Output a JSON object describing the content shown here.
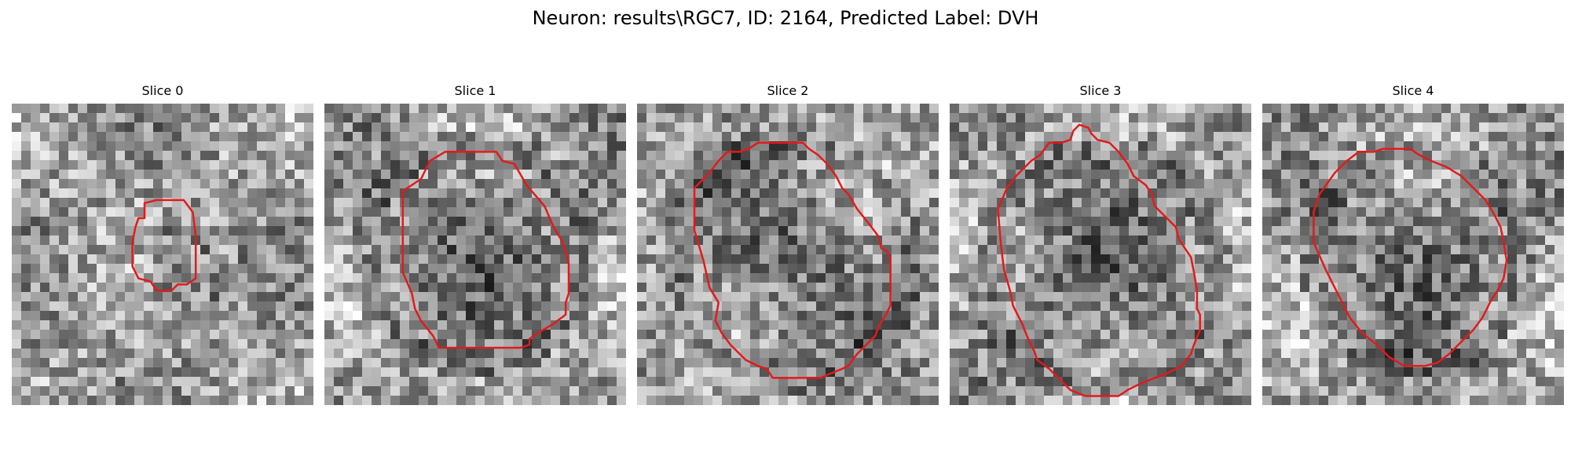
{
  "figure": {
    "title": "Neuron: results\\RGC7, ID: 2164, Predicted Label: DVH"
  },
  "colors": {
    "contour": "#e31a1c",
    "background": "#ffffff"
  },
  "panels": [
    {
      "title": "Slice 0",
      "seed": 11,
      "dark_centre": [
        0.52,
        0.57
      ],
      "dark_radius": 0.16,
      "contour": [
        [
          0.44,
          0.33
        ],
        [
          0.48,
          0.32
        ],
        [
          0.57,
          0.32
        ],
        [
          0.6,
          0.36
        ],
        [
          0.61,
          0.44
        ],
        [
          0.61,
          0.57
        ],
        [
          0.61,
          0.58
        ],
        [
          0.58,
          0.6
        ],
        [
          0.55,
          0.6
        ],
        [
          0.53,
          0.62
        ],
        [
          0.52,
          0.62
        ],
        [
          0.48,
          0.62
        ],
        [
          0.46,
          0.59
        ],
        [
          0.42,
          0.58
        ],
        [
          0.4,
          0.54
        ],
        [
          0.4,
          0.46
        ],
        [
          0.41,
          0.41
        ],
        [
          0.42,
          0.38
        ],
        [
          0.44,
          0.38
        ]
      ]
    },
    {
      "title": "Slice 1",
      "seed": 23,
      "dark_centre": [
        0.5,
        0.5
      ],
      "dark_radius": 0.36,
      "contour": [
        [
          0.32,
          0.25
        ],
        [
          0.35,
          0.19
        ],
        [
          0.4,
          0.16
        ],
        [
          0.57,
          0.16
        ],
        [
          0.59,
          0.19
        ],
        [
          0.63,
          0.2
        ],
        [
          0.67,
          0.27
        ],
        [
          0.73,
          0.34
        ],
        [
          0.76,
          0.41
        ],
        [
          0.79,
          0.46
        ],
        [
          0.81,
          0.53
        ],
        [
          0.81,
          0.63
        ],
        [
          0.8,
          0.66
        ],
        [
          0.8,
          0.7
        ],
        [
          0.76,
          0.73
        ],
        [
          0.71,
          0.76
        ],
        [
          0.68,
          0.78
        ],
        [
          0.68,
          0.8
        ],
        [
          0.65,
          0.81
        ],
        [
          0.38,
          0.81
        ],
        [
          0.36,
          0.77
        ],
        [
          0.32,
          0.72
        ],
        [
          0.3,
          0.68
        ],
        [
          0.29,
          0.63
        ],
        [
          0.26,
          0.56
        ],
        [
          0.26,
          0.29
        ]
      ]
    },
    {
      "title": "Slice 2",
      "seed": 37,
      "dark_centre": [
        0.52,
        0.52
      ],
      "dark_radius": 0.38,
      "contour": [
        [
          0.24,
          0.23
        ],
        [
          0.27,
          0.19
        ],
        [
          0.3,
          0.16
        ],
        [
          0.34,
          0.16
        ],
        [
          0.37,
          0.15
        ],
        [
          0.4,
          0.13
        ],
        [
          0.55,
          0.13
        ],
        [
          0.57,
          0.15
        ],
        [
          0.6,
          0.17
        ],
        [
          0.63,
          0.2
        ],
        [
          0.66,
          0.24
        ],
        [
          0.68,
          0.28
        ],
        [
          0.7,
          0.3
        ],
        [
          0.73,
          0.35
        ],
        [
          0.77,
          0.4
        ],
        [
          0.8,
          0.44
        ],
        [
          0.81,
          0.48
        ],
        [
          0.83,
          0.49
        ],
        [
          0.84,
          0.52
        ],
        [
          0.84,
          0.67
        ],
        [
          0.82,
          0.71
        ],
        [
          0.8,
          0.74
        ],
        [
          0.79,
          0.77
        ],
        [
          0.76,
          0.8
        ],
        [
          0.73,
          0.83
        ],
        [
          0.7,
          0.87
        ],
        [
          0.68,
          0.88
        ],
        [
          0.63,
          0.9
        ],
        [
          0.61,
          0.91
        ],
        [
          0.45,
          0.91
        ],
        [
          0.43,
          0.88
        ],
        [
          0.4,
          0.87
        ],
        [
          0.36,
          0.85
        ],
        [
          0.31,
          0.8
        ],
        [
          0.28,
          0.76
        ],
        [
          0.26,
          0.72
        ],
        [
          0.27,
          0.66
        ],
        [
          0.24,
          0.61
        ],
        [
          0.22,
          0.52
        ],
        [
          0.19,
          0.42
        ],
        [
          0.19,
          0.28
        ],
        [
          0.21,
          0.26
        ]
      ]
    },
    {
      "title": "Slice 3",
      "seed": 51,
      "dark_centre": [
        0.5,
        0.55
      ],
      "dark_radius": 0.38,
      "contour": [
        [
          0.19,
          0.28
        ],
        [
          0.22,
          0.24
        ],
        [
          0.27,
          0.19
        ],
        [
          0.3,
          0.17
        ],
        [
          0.33,
          0.13
        ],
        [
          0.37,
          0.13
        ],
        [
          0.4,
          0.12
        ],
        [
          0.41,
          0.09
        ],
        [
          0.43,
          0.07
        ],
        [
          0.46,
          0.08
        ],
        [
          0.47,
          0.1
        ],
        [
          0.49,
          0.12
        ],
        [
          0.53,
          0.13
        ],
        [
          0.56,
          0.16
        ],
        [
          0.59,
          0.2
        ],
        [
          0.61,
          0.24
        ],
        [
          0.65,
          0.27
        ],
        [
          0.67,
          0.3
        ],
        [
          0.68,
          0.34
        ],
        [
          0.72,
          0.38
        ],
        [
          0.75,
          0.41
        ],
        [
          0.76,
          0.45
        ],
        [
          0.78,
          0.48
        ],
        [
          0.8,
          0.51
        ],
        [
          0.81,
          0.56
        ],
        [
          0.82,
          0.62
        ],
        [
          0.82,
          0.68
        ],
        [
          0.83,
          0.7
        ],
        [
          0.83,
          0.75
        ],
        [
          0.81,
          0.8
        ],
        [
          0.8,
          0.83
        ],
        [
          0.77,
          0.87
        ],
        [
          0.71,
          0.9
        ],
        [
          0.68,
          0.91
        ],
        [
          0.63,
          0.93
        ],
        [
          0.59,
          0.95
        ],
        [
          0.56,
          0.97
        ],
        [
          0.45,
          0.97
        ],
        [
          0.4,
          0.95
        ],
        [
          0.37,
          0.92
        ],
        [
          0.33,
          0.88
        ],
        [
          0.29,
          0.85
        ],
        [
          0.28,
          0.82
        ],
        [
          0.26,
          0.78
        ],
        [
          0.24,
          0.73
        ],
        [
          0.21,
          0.67
        ],
        [
          0.2,
          0.62
        ],
        [
          0.18,
          0.55
        ],
        [
          0.17,
          0.47
        ],
        [
          0.16,
          0.35
        ]
      ]
    },
    {
      "title": "Slice 4",
      "seed": 67,
      "dark_centre": [
        0.52,
        0.52
      ],
      "dark_radius": 0.34,
      "contour": [
        [
          0.19,
          0.3
        ],
        [
          0.24,
          0.23
        ],
        [
          0.28,
          0.19
        ],
        [
          0.32,
          0.16
        ],
        [
          0.37,
          0.16
        ],
        [
          0.4,
          0.15
        ],
        [
          0.49,
          0.15
        ],
        [
          0.52,
          0.17
        ],
        [
          0.56,
          0.19
        ],
        [
          0.61,
          0.21
        ],
        [
          0.66,
          0.24
        ],
        [
          0.7,
          0.28
        ],
        [
          0.74,
          0.32
        ],
        [
          0.77,
          0.37
        ],
        [
          0.79,
          0.41
        ],
        [
          0.8,
          0.46
        ],
        [
          0.81,
          0.52
        ],
        [
          0.8,
          0.58
        ],
        [
          0.78,
          0.62
        ],
        [
          0.76,
          0.65
        ],
        [
          0.73,
          0.71
        ],
        [
          0.7,
          0.75
        ],
        [
          0.66,
          0.79
        ],
        [
          0.62,
          0.83
        ],
        [
          0.58,
          0.86
        ],
        [
          0.54,
          0.87
        ],
        [
          0.47,
          0.87
        ],
        [
          0.42,
          0.84
        ],
        [
          0.38,
          0.8
        ],
        [
          0.33,
          0.76
        ],
        [
          0.29,
          0.71
        ],
        [
          0.25,
          0.63
        ],
        [
          0.21,
          0.55
        ],
        [
          0.17,
          0.46
        ],
        [
          0.17,
          0.36
        ]
      ]
    }
  ]
}
